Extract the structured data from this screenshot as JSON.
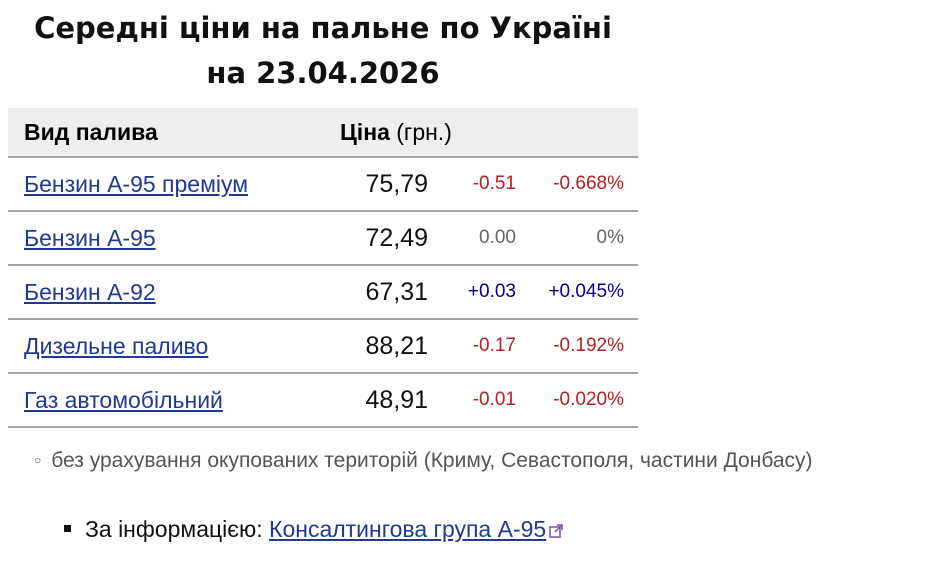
{
  "title_line1": "Середні ціни на пальне по Україні",
  "title_line2": "на 23.04.2026",
  "table": {
    "headers": {
      "fuel": "Вид палива",
      "price": "Ціна",
      "unit": "(грн.)"
    },
    "rows": [
      {
        "fuel": "Бензин А-95 преміум",
        "price": "75,79",
        "change": "-0.51",
        "percent": "-0.668%",
        "trend": "neg"
      },
      {
        "fuel": "Бензин А-95",
        "price": "72,49",
        "change": "0.00",
        "percent": "0%",
        "trend": "zero"
      },
      {
        "fuel": "Бензин А-92",
        "price": "67,31",
        "change": "+0.03",
        "percent": "+0.045%",
        "trend": "pos"
      },
      {
        "fuel": "Дизельне паливо",
        "price": "88,21",
        "change": "-0.17",
        "percent": "-0.192%",
        "trend": "neg"
      },
      {
        "fuel": "Газ автомобільний",
        "price": "48,91",
        "change": "-0.01",
        "percent": "-0.020%",
        "trend": "neg"
      }
    ]
  },
  "note": "без урахування окупованих територій (Криму, Севастополя, частини Донбасу)",
  "source": {
    "label": "За інформацією:",
    "link": "Консалтингова група А-95",
    "icon": "external-link-icon"
  },
  "colors": {
    "link": "#1f3a93",
    "negative": "#b22222",
    "positive": "#00008b",
    "zero": "#666666"
  }
}
